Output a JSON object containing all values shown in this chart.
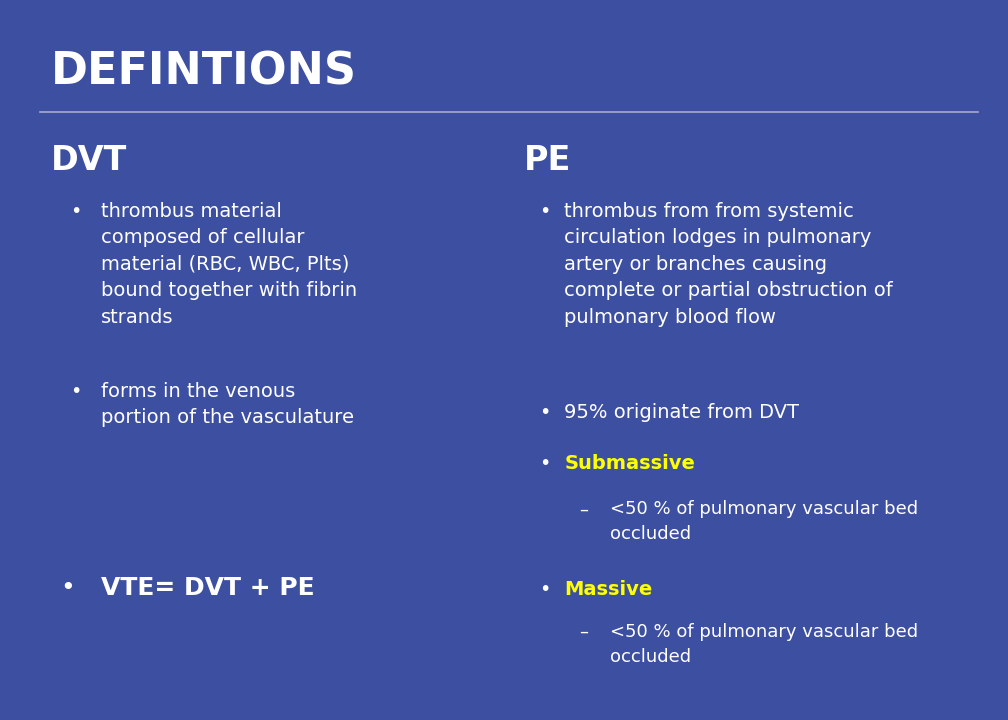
{
  "background_color": "#3D4FA0",
  "title": "DEFINTIONS",
  "title_color": "#FFFFFF",
  "title_fontsize": 32,
  "line_color": "#AAAACC",
  "dvt_header": "DVT",
  "pe_header": "PE",
  "header_color": "#FFFFFF",
  "header_fontsize": 24,
  "bullet_color": "#FFFFFF",
  "bullet_fontsize": 14,
  "yellow_color": "#FFFF00",
  "dvt_bullets": [
    "thrombus material\ncomposed of cellular\nmaterial (RBC, WBC, Plts)\nbound together with fibrin\nstrands",
    "forms in the venous\nportion of the vasculature"
  ],
  "dvt_extra_bullet": "VTE= DVT + PE",
  "pe_bullets_white": [
    "thrombus from from systemic\ncirculation lodges in pulmonary\nartery or branches causing\ncomplete or partial obstruction of\npulmonary blood flow",
    "95% originate from DVT"
  ],
  "pe_submassive_label": "Submassive",
  "pe_submassive_sub": "<50 % of pulmonary vascular bed\noccluded",
  "pe_massive_label": "Massive",
  "pe_massive_sub": "<50 % of pulmonary vascular bed\noccluded"
}
